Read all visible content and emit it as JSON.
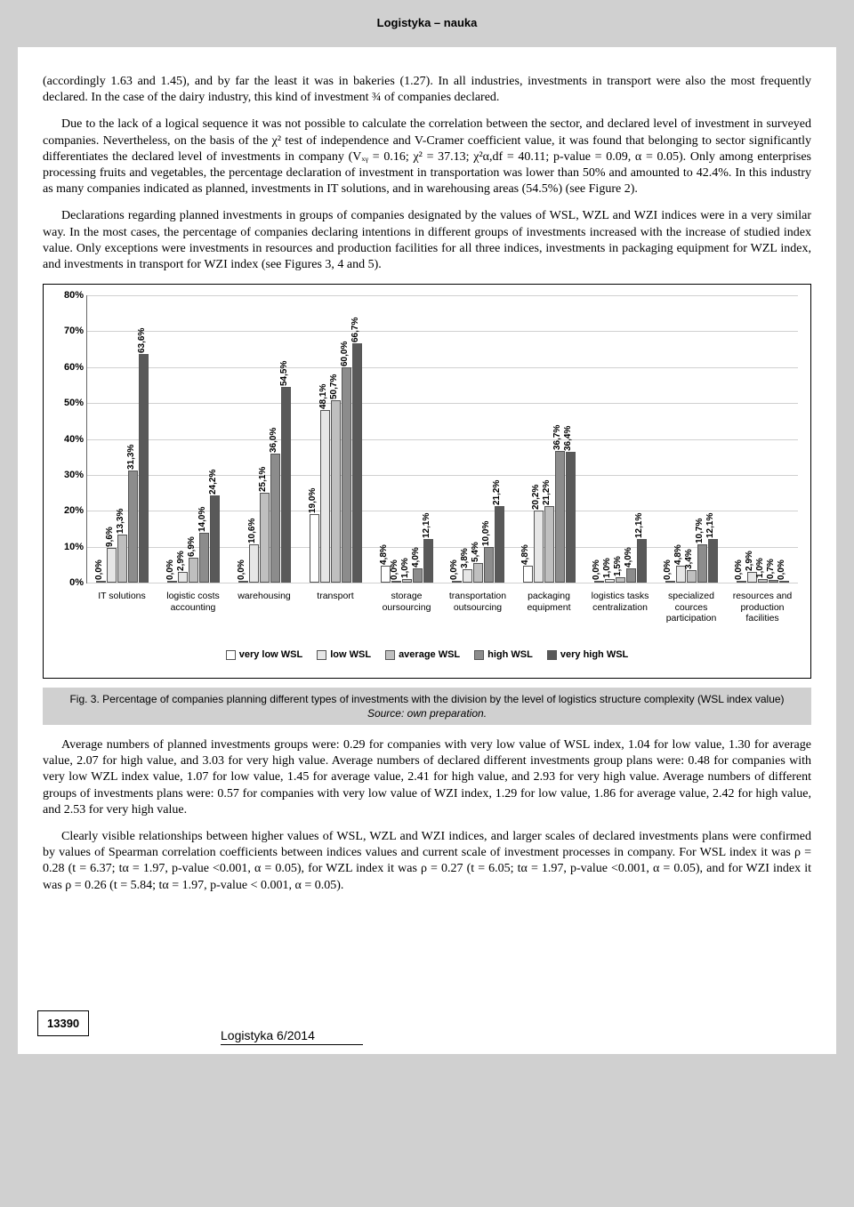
{
  "header": {
    "title": "Logistyka – nauka"
  },
  "paragraphs": {
    "p1": "(accordingly 1.63 and 1.45), and by far the least it was in bakeries (1.27). In all industries, investments in transport were also the most frequently declared. In the case of the dairy industry, this kind of investment ¾ of companies declared.",
    "p2": "Due to the lack of a logical sequence it was not possible to calculate the correlation between the sector, and declared level of investment in surveyed companies. Nevertheless, on the basis of the χ² test of independence and V-Cramer coefficient value, it was found that belonging to sector significantly differentiates the declared level of investments in company (Vₓᵧ = 0.16; χ² = 37.13; χ²α,df = 40.11; p-value = 0.09, α = 0.05). Only among enterprises processing fruits and vegetables, the percentage declaration of investment in transportation was lower than 50% and amounted to 42.4%. In this industry as many companies indicated as planned, investments in IT solutions, and in warehousing areas (54.5%) (see Figure 2).",
    "p3": "Declarations regarding planned investments in groups of companies designated by the values of WSL, WZL and WZI indices were in a very similar way. In the most cases, the percentage of companies declaring intentions in different groups of investments increased with the increase of studied index value. Only exceptions were investments in resources and production facilities for all three indices, investments in packaging equipment for WZL index, and investments in transport for WZI index (see Figures 3, 4 and 5).",
    "p4": "Average numbers of planned investments groups were: 0.29 for companies with very low value of WSL index, 1.04 for low value, 1.30 for average value, 2.07 for high value, and 3.03 for very high value. Average numbers of declared different investments group plans were: 0.48 for companies with very low WZL index value, 1.07 for low value, 1.45 for average value, 2.41 for high value, and 2.93 for very high value. Average numbers of different groups of investments plans were: 0.57 for companies with very low value of WZI index, 1.29 for low value, 1.86 for average value, 2.42 for high value, and 2.53 for very high value.",
    "p5": "Clearly visible relationships between higher values of WSL, WZL and WZI indices, and larger scales of declared investments plans were confirmed by values of Spearman correlation coefficients between indices values and current scale of investment processes in company. For WSL index it was ρ = 0.28 (t = 6.37; tα = 1.97, p-value <0.001, α = 0.05), for WZL index it was ρ = 0.27 (t = 6.05; tα = 1.97, p-value <0.001, α = 0.05), and for WZI index it was ρ = 0.26 (t = 5.84; tα = 1.97, p-value < 0.001, α = 0.05)."
  },
  "figure": {
    "caption": "Fig. 3. Percentage of companies planning different types of investments with the division by the level of logistics structure complexity (WSL index value)",
    "source": "Source: own preparation.",
    "ylabel_unit": "%",
    "ylim": [
      0,
      80
    ],
    "ytick_step": 10,
    "series_labels": [
      "very low WSL",
      "low WSL",
      "average WSL",
      "high WSL",
      "very high WSL"
    ],
    "series_colors": [
      "#ffffff",
      "#e6e6e6",
      "#bfbfbf",
      "#8c8c8c",
      "#595959"
    ],
    "bar_border": "#555555",
    "categories": [
      {
        "label": "IT solutions",
        "values": [
          0.0,
          9.6,
          13.3,
          31.3,
          63.6
        ],
        "labels": [
          "0,0%",
          "9,6%",
          "13,3%",
          "31,3%",
          "63,6%"
        ]
      },
      {
        "label": "logistic costs accounting",
        "values": [
          0.0,
          2.9,
          6.9,
          14.0,
          24.2
        ],
        "labels": [
          "0,0%",
          "2,9%",
          "6,9%",
          "14,0%",
          "24,2%"
        ]
      },
      {
        "label": "warehousing",
        "values": [
          0.0,
          10.6,
          25.1,
          36.0,
          54.5
        ],
        "labels": [
          "0,0%",
          "10,6%",
          "25,1%",
          "36,0%",
          "54,5%"
        ]
      },
      {
        "label": "transport",
        "values": [
          19.0,
          48.1,
          50.7,
          60.0,
          66.7
        ],
        "labels": [
          "19,0%",
          "48,1%",
          "50,7%",
          "60,0%",
          "66,7%"
        ]
      },
      {
        "label": "storage oursourcing",
        "values": [
          4.8,
          0.0,
          1.0,
          4.0,
          12.1
        ],
        "labels": [
          "4,8%",
          "0,0%",
          "1,0%",
          "4,0%",
          "12,1%"
        ]
      },
      {
        "label": "transportation outsourcing",
        "values": [
          0.0,
          3.8,
          5.4,
          10.0,
          21.2
        ],
        "labels": [
          "0,0%",
          "3,8%",
          "5,4%",
          "10,0%",
          "21,2%"
        ]
      },
      {
        "label": "packaging equipment",
        "values": [
          4.8,
          20.2,
          21.2,
          36.7,
          36.4
        ],
        "labels": [
          "4,8%",
          "20,2%",
          "21,2%",
          "36,7%",
          "36,4%"
        ]
      },
      {
        "label": "logistics tasks centralization",
        "values": [
          0.0,
          1.0,
          1.5,
          4.0,
          12.1
        ],
        "labels": [
          "0,0%",
          "1,0%",
          "1,5%",
          "4,0%",
          "12,1%"
        ]
      },
      {
        "label": "specialized cources participation",
        "values": [
          0.0,
          4.8,
          3.4,
          10.7,
          12.1
        ],
        "labels": [
          "0,0%",
          "4,8%",
          "3,4%",
          "10,7%",
          "12,1%"
        ]
      },
      {
        "label": "resources and production facilities",
        "values": [
          0.0,
          2.9,
          1.0,
          0.7,
          0.0
        ],
        "labels": [
          "0,0%",
          "2,9%",
          "1,0%",
          "0,7%",
          "0,0%"
        ]
      }
    ]
  },
  "footer": {
    "page_number": "13390",
    "journal": "Logistyka 6/2014"
  }
}
